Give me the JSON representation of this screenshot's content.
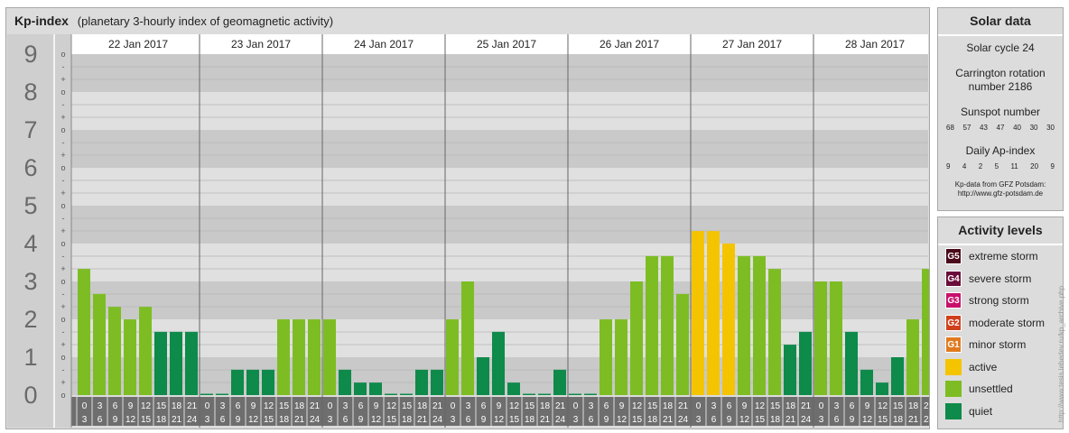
{
  "header": {
    "title": "Kp-index",
    "subtitle": "(planetary 3-hourly index of geomagnetic activity)"
  },
  "chart_data": {
    "type": "bar",
    "title": "Kp-index",
    "subtitle": "(planetary 3-hourly index of geomagnetic activity)",
    "y_labels": [
      "0",
      "1",
      "2",
      "3",
      "4",
      "5",
      "6",
      "7",
      "8",
      "9"
    ],
    "y_minor_labels": [
      "+",
      "o",
      "-"
    ],
    "ylim": [
      0,
      9
    ],
    "days": [
      "22 Jan 2017",
      "23 Jan 2017",
      "24 Jan 2017",
      "25 Jan 2017",
      "26 Jan 2017",
      "27 Jan 2017",
      "28 Jan 2017"
    ],
    "interval_start_labels": [
      "0",
      "3",
      "6",
      "9",
      "12",
      "15",
      "18",
      "21"
    ],
    "interval_end_labels": [
      "3",
      "6",
      "9",
      "12",
      "15",
      "18",
      "21",
      "24"
    ],
    "values": [
      [
        3.33,
        2.67,
        2.33,
        2.0,
        2.33,
        1.67,
        1.67,
        1.67
      ],
      [
        0.0,
        0.0,
        0.67,
        0.67,
        0.67,
        2.0,
        2.0,
        2.0
      ],
      [
        2.0,
        0.67,
        0.33,
        0.33,
        0.0,
        0.0,
        0.67,
        0.67
      ],
      [
        2.0,
        3.0,
        1.0,
        1.67,
        0.33,
        0.0,
        0.0,
        0.67
      ],
      [
        0.0,
        0.0,
        2.0,
        2.0,
        3.0,
        3.67,
        3.67,
        2.67
      ],
      [
        4.33,
        4.33,
        4.0,
        3.67,
        3.67,
        3.33,
        1.33,
        1.67
      ],
      [
        3.0,
        3.0,
        1.67,
        0.67,
        0.33,
        1.0,
        2.0,
        3.33
      ]
    ],
    "grid": true,
    "legend_position": "right"
  },
  "colors": {
    "quiet": "#0e8a4a",
    "unsettled": "#7dbd23",
    "active": "#f5c400",
    "minor_storm": "#e07a1f",
    "moderate_storm": "#d0401c",
    "strong_storm": "#c8106c",
    "severe_storm": "#6b0d3b",
    "extreme_storm": "#4a0a1a"
  },
  "solar": {
    "title": "Solar data",
    "cycle": "Solar cycle 24",
    "carrington_line1": "Carrington rotation",
    "carrington_line2": "number 2186",
    "sunspot_title": "Sunspot number",
    "sunspot_values": [
      "68",
      "57",
      "43",
      "47",
      "40",
      "30",
      "30"
    ],
    "ap_title": "Daily Ap-index",
    "ap_values": [
      "9",
      "4",
      "2",
      "5",
      "11",
      "20",
      "9"
    ],
    "source_line1": "Kp-data from GFZ Potsdam:",
    "source_line2": "http://www.gfz-potsdam.de"
  },
  "activity": {
    "title": "Activity levels",
    "items": [
      {
        "badge": "G5",
        "label": "extreme storm",
        "color": "#4a0a1a"
      },
      {
        "badge": "G4",
        "label": "severe storm",
        "color": "#6b0d3b"
      },
      {
        "badge": "G3",
        "label": "strong storm",
        "color": "#c8106c"
      },
      {
        "badge": "G2",
        "label": "moderate storm",
        "color": "#d0401c"
      },
      {
        "badge": "G1",
        "label": "minor storm",
        "color": "#e07a1f"
      },
      {
        "badge": "",
        "label": "active",
        "color": "#f5c400"
      },
      {
        "badge": "",
        "label": "unsettled",
        "color": "#7dbd23"
      },
      {
        "badge": "",
        "label": "quiet",
        "color": "#0e8a4a"
      }
    ]
  },
  "watermark": "http://www.tesis.lebedev.ru/kp_archive.php"
}
